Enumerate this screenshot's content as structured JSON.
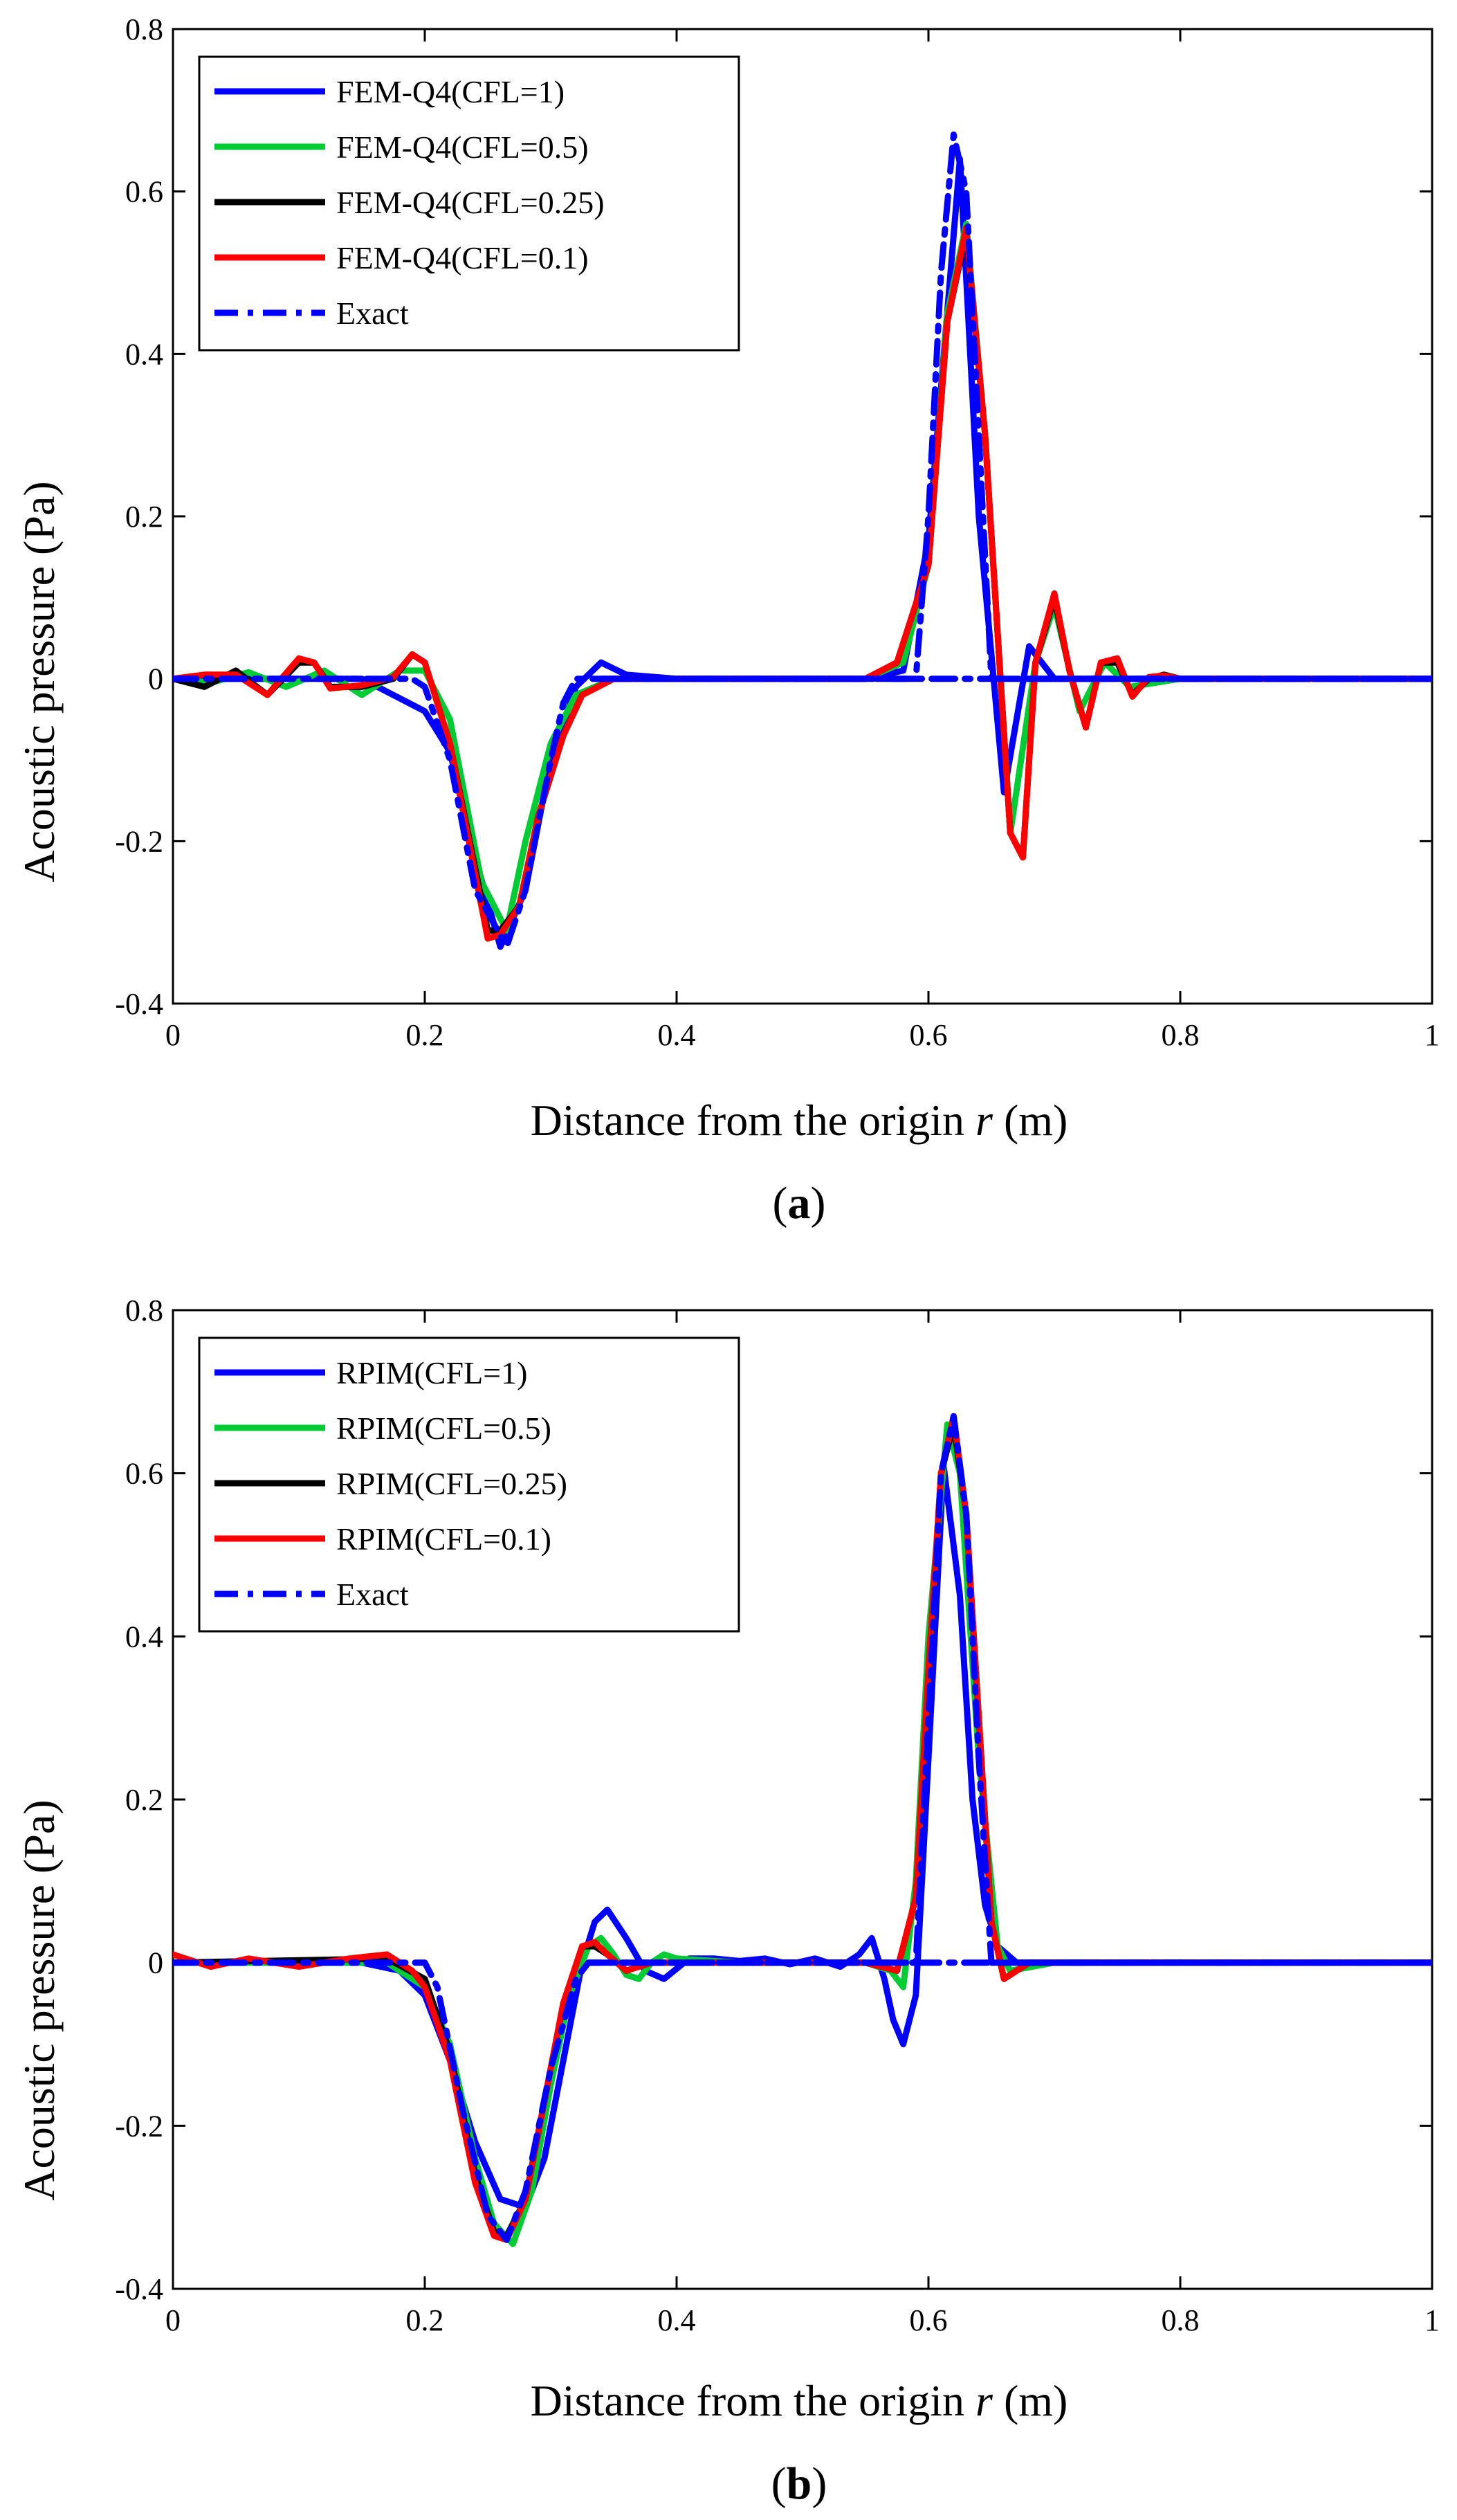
{
  "chart_data": [
    {
      "type": "line",
      "panel_label": "a",
      "xlabel_prefix": "Distance from the origin ",
      "xlabel_var": "r",
      "xlabel_suffix": " (m)",
      "ylabel": "Acoustic pressure (Pa)",
      "xlim": [
        0,
        1
      ],
      "ylim": [
        -0.4,
        0.8
      ],
      "xticks": [
        0,
        0.2,
        0.4,
        0.6,
        0.8,
        1
      ],
      "xtick_labels": [
        "0",
        "0.2",
        "0.4",
        "0.6",
        "0.8",
        "1"
      ],
      "yticks": [
        -0.4,
        -0.2,
        0,
        0.2,
        0.4,
        0.6,
        0.8
      ],
      "ytick_labels": [
        "-0.4",
        "-0.2",
        "0",
        "0.2",
        "0.4",
        "0.6",
        "0.8"
      ],
      "legend_position": "top-left",
      "series": [
        {
          "name": "FEM-Q4(CFL=1)",
          "color": "#0000ff",
          "dash": "solid",
          "x": [
            0,
            0.05,
            0.1,
            0.15,
            0.2,
            0.22,
            0.24,
            0.26,
            0.28,
            0.3,
            0.32,
            0.34,
            0.36,
            0.4,
            0.55,
            0.58,
            0.6,
            0.625,
            0.64,
            0.66,
            0.68,
            0.7,
            0.72,
            0.8,
            1
          ],
          "y": [
            0,
            0,
            0,
            0,
            -0.04,
            -0.09,
            -0.22,
            -0.33,
            -0.26,
            -0.1,
            -0.01,
            0.02,
            0.005,
            0,
            0,
            0.01,
            0.17,
            0.64,
            0.2,
            -0.14,
            0.04,
            0,
            0,
            0,
            0
          ]
        },
        {
          "name": "FEM-Q4(CFL=0.5)",
          "color": "#00cc33",
          "dash": "solid",
          "x": [
            0,
            0.03,
            0.06,
            0.09,
            0.12,
            0.15,
            0.18,
            0.2,
            0.22,
            0.245,
            0.265,
            0.28,
            0.3,
            0.32,
            0.35,
            0.4,
            0.55,
            0.58,
            0.6,
            0.615,
            0.63,
            0.645,
            0.665,
            0.685,
            0.7,
            0.72,
            0.74,
            0.76,
            0.8,
            1
          ],
          "y": [
            0,
            -0.005,
            0.008,
            -0.01,
            0.01,
            -0.02,
            0.01,
            0.01,
            -0.05,
            -0.25,
            -0.31,
            -0.2,
            -0.08,
            -0.02,
            0,
            0,
            0,
            0.02,
            0.14,
            0.45,
            0.56,
            0.3,
            -0.19,
            0.02,
            0.09,
            -0.04,
            0.02,
            -0.01,
            0,
            0
          ]
        },
        {
          "name": "FEM-Q4(CFL=0.25)",
          "color": "#000000",
          "dash": "solid",
          "x": [
            0,
            0.025,
            0.05,
            0.075,
            0.1,
            0.112,
            0.125,
            0.15,
            0.175,
            0.19,
            0.2,
            0.22,
            0.25,
            0.26,
            0.275,
            0.29,
            0.31,
            0.325,
            0.35,
            0.4,
            0.55,
            0.575,
            0.6,
            0.615,
            0.63,
            0.645,
            0.665,
            0.675,
            0.685,
            0.7,
            0.712,
            0.725,
            0.737,
            0.75,
            0.762,
            0.775,
            0.787,
            0.8,
            1
          ],
          "y": [
            0,
            -0.01,
            0.01,
            -0.02,
            0.02,
            0.02,
            -0.01,
            -0.01,
            0,
            0.03,
            0.02,
            -0.08,
            -0.31,
            -0.31,
            -0.28,
            -0.17,
            -0.07,
            -0.02,
            0,
            0,
            0,
            0.02,
            0.14,
            0.44,
            0.55,
            0.3,
            -0.19,
            -0.22,
            0.02,
            0.1,
            0.01,
            -0.06,
            0.02,
            0.02,
            -0.02,
            0,
            0.005,
            0,
            0
          ]
        },
        {
          "name": "FEM-Q4(CFL=0.1)",
          "color": "#ff0000",
          "dash": "solid",
          "x": [
            0,
            0.025,
            0.05,
            0.075,
            0.1,
            0.112,
            0.125,
            0.15,
            0.175,
            0.19,
            0.2,
            0.22,
            0.25,
            0.26,
            0.275,
            0.29,
            0.31,
            0.325,
            0.35,
            0.4,
            0.55,
            0.575,
            0.6,
            0.615,
            0.63,
            0.645,
            0.665,
            0.675,
            0.685,
            0.7,
            0.712,
            0.725,
            0.737,
            0.75,
            0.762,
            0.775,
            0.787,
            0.8,
            1
          ],
          "y": [
            0,
            0.005,
            0.005,
            -0.02,
            0.025,
            0.02,
            -0.012,
            -0.008,
            0.002,
            0.03,
            0.02,
            -0.08,
            -0.32,
            -0.315,
            -0.28,
            -0.17,
            -0.07,
            -0.02,
            0,
            0,
            0,
            0.02,
            0.14,
            0.44,
            0.555,
            0.3,
            -0.19,
            -0.22,
            0.02,
            0.105,
            0.01,
            -0.06,
            0.02,
            0.025,
            -0.022,
            0.002,
            0.004,
            0,
            0
          ]
        },
        {
          "name": "Exact",
          "color": "#0000ff",
          "dash": "dashdot",
          "x": [
            0,
            0.19,
            0.2,
            0.22,
            0.24,
            0.265,
            0.28,
            0.3,
            0.31,
            0.32,
            0.34,
            1
          ],
          "y": [
            0,
            0,
            -0.01,
            -0.1,
            -0.26,
            -0.33,
            -0.26,
            -0.1,
            -0.03,
            0,
            0,
            0
          ],
          "x2": [
            0.34,
            0.59,
            0.6,
            0.61,
            0.62,
            0.63,
            0.64,
            0.65,
            0.66,
            1
          ],
          "y2": [
            0,
            0,
            0.2,
            0.5,
            0.67,
            0.6,
            0.3,
            0,
            0,
            0
          ]
        }
      ]
    },
    {
      "type": "line",
      "panel_label": "b",
      "xlabel_prefix": "Distance from the origin ",
      "xlabel_var": "r",
      "xlabel_suffix": " (m)",
      "ylabel": "Acoustic pressure (Pa)",
      "xlim": [
        0,
        1
      ],
      "ylim": [
        -0.4,
        0.8
      ],
      "xticks": [
        0,
        0.2,
        0.4,
        0.6,
        0.8,
        1
      ],
      "xtick_labels": [
        "0",
        "0.2",
        "0.4",
        "0.6",
        "0.8",
        "1"
      ],
      "yticks": [
        -0.4,
        -0.2,
        0,
        0.2,
        0.4,
        0.6,
        0.8
      ],
      "ytick_labels": [
        "-0.4",
        "-0.2",
        "0",
        "0.2",
        "0.4",
        "0.6",
        "0.8"
      ],
      "legend_position": "top-left",
      "series": [
        {
          "name": "RPIM(CFL=1)",
          "color": "#0000ff",
          "dash": "solid",
          "x": [
            0,
            0.15,
            0.18,
            0.2,
            0.22,
            0.24,
            0.26,
            0.28,
            0.295,
            0.31,
            0.325,
            0.335,
            0.345,
            0.36,
            0.375,
            0.39,
            0.41,
            0.43,
            0.45,
            0.47,
            0.49,
            0.51,
            0.53,
            0.545,
            0.555,
            0.565,
            0.572,
            0.58,
            0.59,
            0.6,
            0.612,
            0.625,
            0.635,
            0.645,
            0.655,
            0.67,
            0.7,
            1
          ],
          "y": [
            0,
            0,
            -0.01,
            -0.04,
            -0.12,
            -0.22,
            -0.29,
            -0.3,
            -0.24,
            -0.12,
            0.0,
            0.05,
            0.065,
            0.03,
            -0.01,
            -0.02,
            0.005,
            0.005,
            0.002,
            0.005,
            -0.002,
            0.005,
            -0.005,
            0.01,
            0.03,
            -0.02,
            -0.07,
            -0.1,
            -0.04,
            0.25,
            0.61,
            0.45,
            0.2,
            0.07,
            0.02,
            0,
            0,
            0
          ]
        },
        {
          "name": "RPIM(CFL=0.5)",
          "color": "#00cc33",
          "dash": "solid",
          "x": [
            0,
            0.17,
            0.2,
            0.22,
            0.24,
            0.255,
            0.27,
            0.285,
            0.3,
            0.315,
            0.33,
            0.34,
            0.35,
            0.36,
            0.37,
            0.38,
            0.39,
            0.4,
            0.45,
            0.55,
            0.57,
            0.58,
            0.59,
            0.6,
            0.615,
            0.625,
            0.64,
            0.655,
            0.665,
            0.7,
            1
          ],
          "y": [
            0,
            0,
            -0.03,
            -0.1,
            -0.24,
            -0.32,
            -0.345,
            -0.28,
            -0.15,
            -0.04,
            0.02,
            0.03,
            0.01,
            -0.015,
            -0.02,
            0,
            0.01,
            0.005,
            0,
            0,
            -0.01,
            -0.03,
            0.1,
            0.4,
            0.66,
            0.6,
            0.25,
            0.02,
            -0.01,
            0,
            0
          ]
        },
        {
          "name": "RPIM(CFL=0.25)",
          "color": "#000000",
          "dash": "solid",
          "x": [
            0,
            0.17,
            0.2,
            0.22,
            0.24,
            0.255,
            0.265,
            0.28,
            0.295,
            0.31,
            0.325,
            0.335,
            0.345,
            0.36,
            0.38,
            0.4,
            0.55,
            0.575,
            0.59,
            0.6,
            0.61,
            0.62,
            0.63,
            0.64,
            0.65,
            0.66,
            0.68,
            1
          ],
          "y": [
            0,
            0.005,
            -0.02,
            -0.11,
            -0.26,
            -0.33,
            -0.335,
            -0.29,
            -0.17,
            -0.05,
            0.02,
            0.02,
            0.01,
            -0.01,
            0,
            0,
            0,
            -0.01,
            0.08,
            0.35,
            0.6,
            0.66,
            0.55,
            0.3,
            0.05,
            -0.02,
            0,
            0
          ]
        },
        {
          "name": "RPIM(CFL=0.1)",
          "color": "#ff0000",
          "dash": "solid",
          "x": [
            0,
            0.03,
            0.06,
            0.1,
            0.14,
            0.17,
            0.19,
            0.2,
            0.22,
            0.24,
            0.255,
            0.265,
            0.28,
            0.295,
            0.31,
            0.325,
            0.335,
            0.345,
            0.36,
            0.38,
            0.4,
            0.55,
            0.575,
            0.59,
            0.6,
            0.61,
            0.62,
            0.63,
            0.64,
            0.65,
            0.66,
            0.68,
            1
          ],
          "y": [
            0.01,
            -0.005,
            0.005,
            -0.005,
            0.005,
            0.01,
            -0.01,
            -0.03,
            -0.12,
            -0.27,
            -0.335,
            -0.34,
            -0.29,
            -0.17,
            -0.05,
            0.02,
            0.025,
            0.01,
            -0.01,
            0,
            0,
            0,
            -0.01,
            0.08,
            0.36,
            0.6,
            0.67,
            0.55,
            0.3,
            0.05,
            -0.02,
            0,
            0
          ]
        },
        {
          "name": "Exact",
          "color": "#0000ff",
          "dash": "dashdot",
          "x": [
            0,
            0.2,
            0.21,
            0.23,
            0.25,
            0.265,
            0.28,
            0.3,
            0.32,
            0.33,
            1
          ],
          "y": [
            0,
            0,
            -0.03,
            -0.18,
            -0.31,
            -0.34,
            -0.28,
            -0.13,
            -0.02,
            0,
            0
          ],
          "x2": [
            0.33,
            0.59,
            0.6,
            0.61,
            0.62,
            0.63,
            0.64,
            0.65,
            1
          ],
          "y2": [
            0,
            0,
            0.3,
            0.6,
            0.67,
            0.55,
            0.25,
            0,
            0
          ]
        }
      ]
    }
  ]
}
